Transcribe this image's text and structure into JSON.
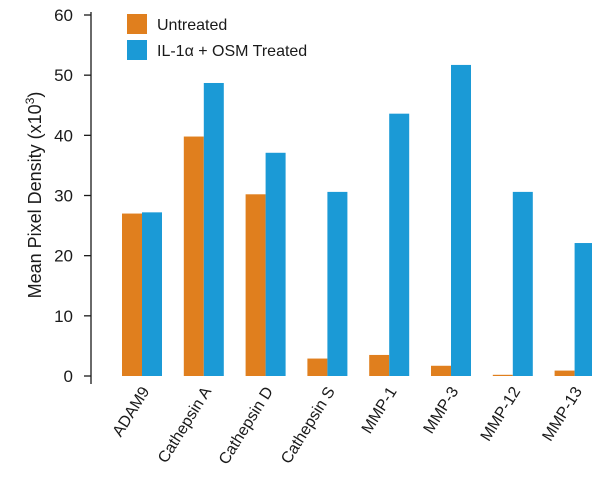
{
  "chart_data": {
    "type": "bar",
    "title": "",
    "xlabel": "",
    "ylabel": "Mean Pixel Density (x10",
    "ylabel_sup": "3",
    "ylabel_close": ")",
    "ylim": [
      0,
      60
    ],
    "yticks": [
      0,
      10,
      20,
      30,
      40,
      50,
      60
    ],
    "grid": false,
    "legend_position": "top-left",
    "categories": [
      "ADAM9",
      "Cathepsin A",
      "Cathepsin D",
      "Cathepsin S",
      "MMP-1",
      "MMP-3",
      "MMP-12",
      "MMP-13"
    ],
    "series": [
      {
        "name": "Untreated",
        "color": "#e07f1e",
        "values": [
          27,
          39.8,
          30.2,
          2.9,
          3.5,
          1.7,
          0.2,
          0.9
        ]
      },
      {
        "name": "IL-1α + OSM Treated",
        "color": "#1b9ad6",
        "values": [
          27.2,
          48.7,
          37.1,
          30.6,
          43.6,
          51.7,
          30.6,
          22.1
        ]
      }
    ]
  }
}
